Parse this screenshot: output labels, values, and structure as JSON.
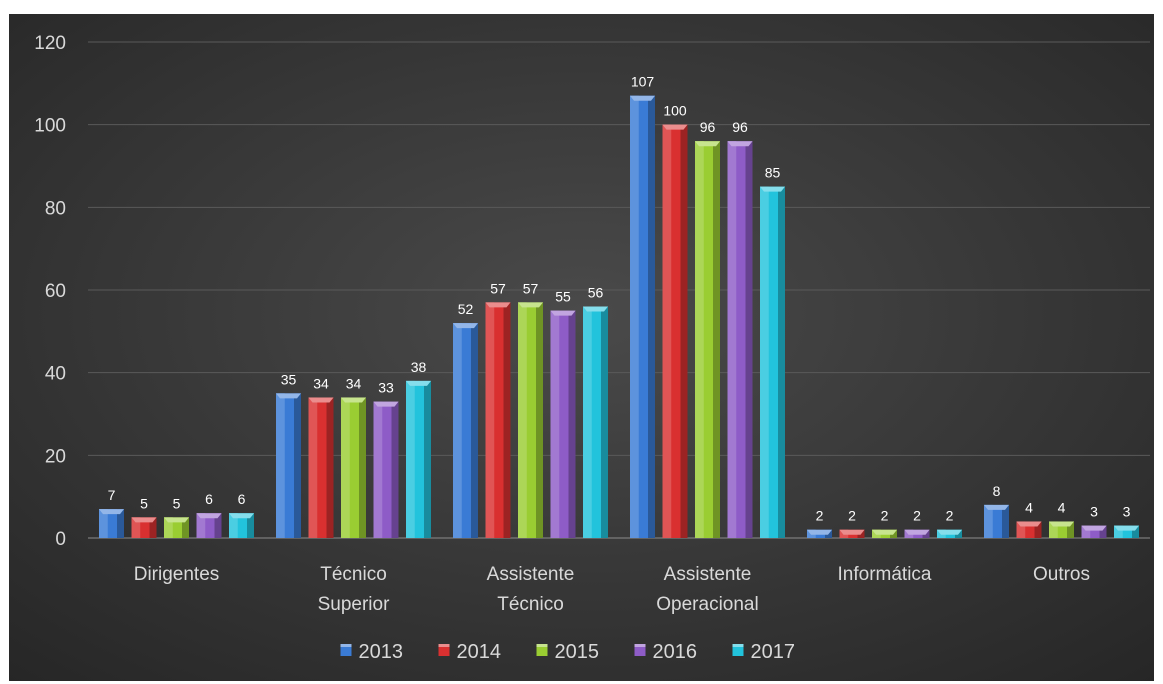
{
  "chart_data": {
    "type": "bar",
    "categories": [
      [
        "Dirigentes"
      ],
      [
        "Técnico",
        "Superior"
      ],
      [
        "Assistente",
        "Técnico"
      ],
      [
        "Assistente",
        "Operacional"
      ],
      [
        "Informática"
      ],
      [
        "Outros"
      ]
    ],
    "series": [
      {
        "name": "2013",
        "color": "#3a7bd5",
        "values": [
          7,
          35,
          52,
          107,
          2,
          8
        ]
      },
      {
        "name": "2014",
        "color": "#d93030",
        "values": [
          5,
          34,
          57,
          100,
          2,
          4
        ]
      },
      {
        "name": "2015",
        "color": "#9acd32",
        "values": [
          5,
          34,
          57,
          96,
          2,
          4
        ]
      },
      {
        "name": "2016",
        "color": "#8e5cc7",
        "values": [
          6,
          33,
          55,
          96,
          2,
          3
        ]
      },
      {
        "name": "2017",
        "color": "#22c3dc",
        "values": [
          6,
          38,
          56,
          85,
          2,
          3
        ]
      }
    ],
    "ylim": [
      0,
      120
    ],
    "yticks": [
      0,
      20,
      40,
      60,
      80,
      100,
      120
    ],
    "grid": true,
    "legend_position": "bottom",
    "title": "",
    "xlabel": "",
    "ylabel": "",
    "background_color": "#3c3c3c"
  }
}
